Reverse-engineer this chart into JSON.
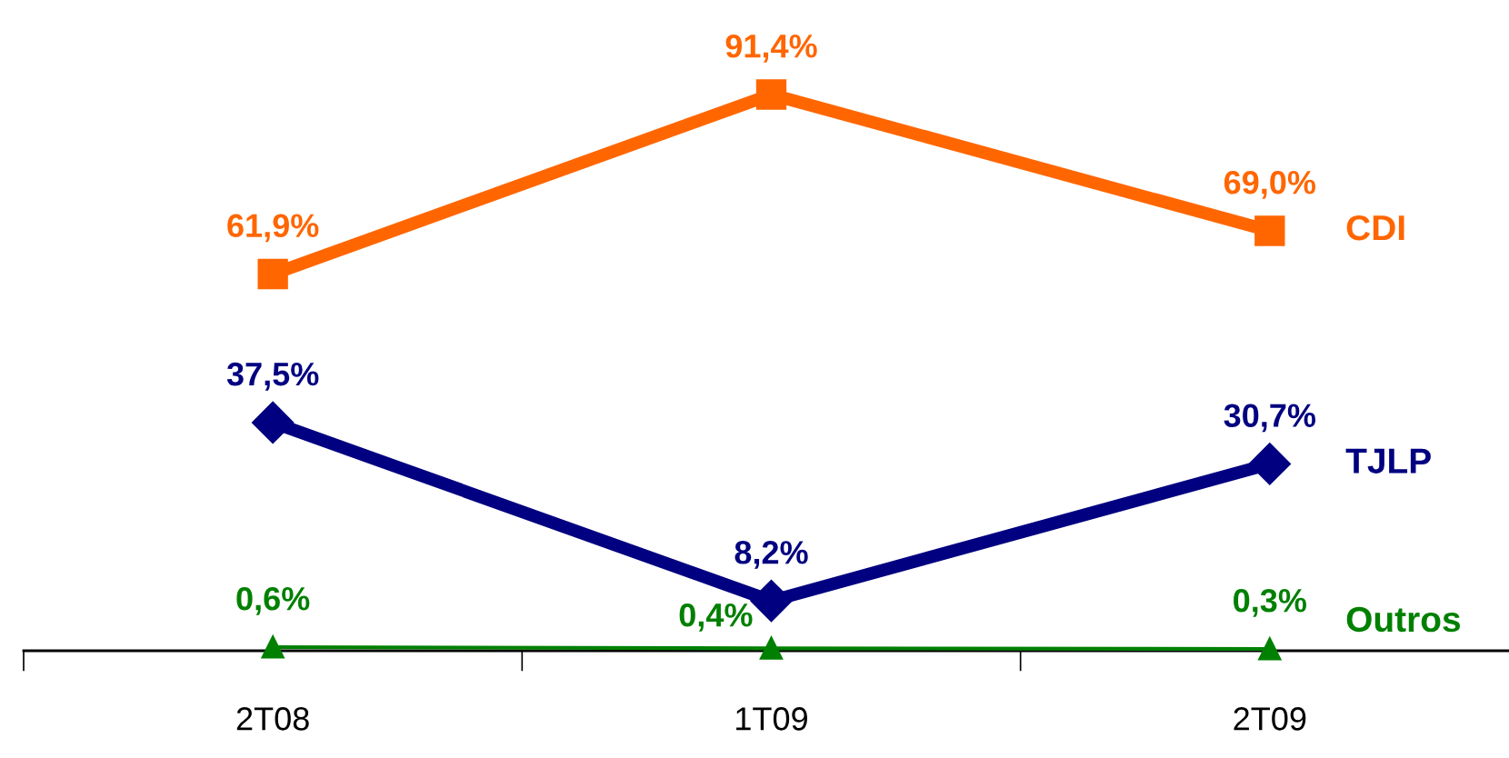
{
  "chart_data": {
    "type": "line",
    "categories": [
      "2T08",
      "1T09",
      "2T09"
    ],
    "grid": false,
    "legend": false,
    "tick_labels": "x",
    "series": [
      {
        "name": "CDI",
        "color": "#ff6600",
        "marker": "square",
        "values": [
          61.9,
          91.4,
          69.0
        ],
        "value_labels": [
          "61,9%",
          "91,4%",
          "69,0%"
        ]
      },
      {
        "name": "TJLP",
        "color": "#000080",
        "marker": "diamond",
        "values": [
          37.5,
          8.2,
          30.7
        ],
        "value_labels": [
          "37,5%",
          "8,2%",
          "30,7%"
        ]
      },
      {
        "name": "Outros",
        "color": "#008000",
        "marker": "triangle",
        "values": [
          0.6,
          0.4,
          0.3
        ],
        "value_labels": [
          "0,6%",
          "0,4%",
          "0,3%"
        ]
      }
    ]
  }
}
